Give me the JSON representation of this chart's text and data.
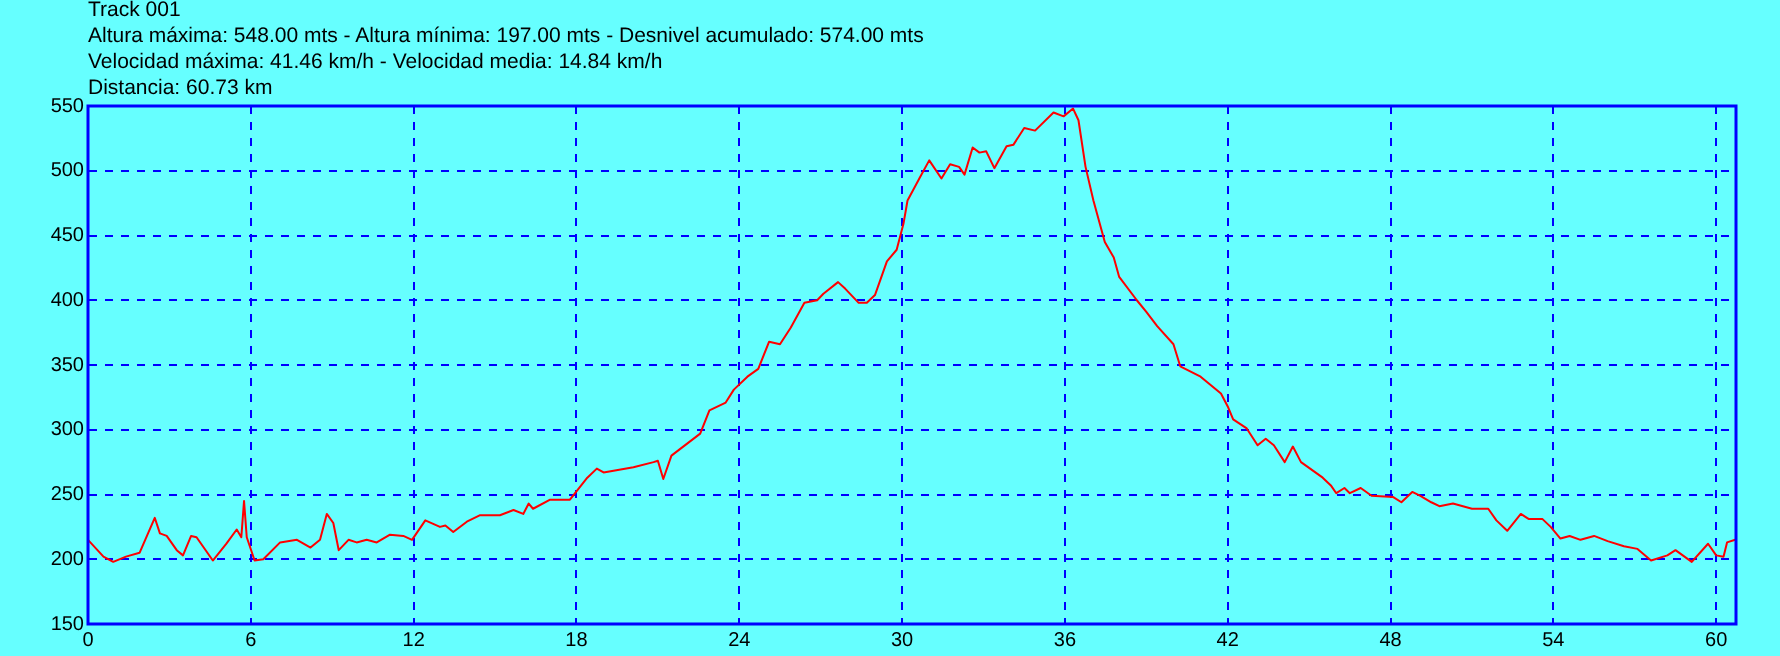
{
  "chart_data": {
    "type": "line",
    "title": "Track 001",
    "subtitle": "Altura máxima: 548.00 mts - Altura mínima: 197.00 mts - Desnivel acumulado: 574.00 mts",
    "annotations": [
      "Velocidad máxima: 41.46 km/h - Velocidad media: 14.84 km/h",
      "Distancia: 60.73 km"
    ],
    "series": [
      {
        "color": "#ff0000",
        "x": [
          0,
          0.57,
          0.93,
          1.4,
          1.9,
          2.46,
          2.65,
          2.9,
          3.27,
          3.5,
          3.8,
          4.0,
          4.6,
          5.1,
          5.48,
          5.65,
          5.75,
          5.85,
          6.14,
          6.46,
          7.08,
          7.7,
          8.2,
          8.55,
          8.8,
          9.04,
          9.24,
          9.6,
          9.9,
          10.27,
          10.64,
          11.13,
          11.62,
          11.94,
          12.43,
          12.97,
          13.17,
          13.46,
          13.96,
          14.45,
          15.18,
          15.68,
          16.04,
          16.24,
          16.4,
          17.03,
          17.76,
          18.4,
          18.75,
          19.0,
          20.1,
          20.84,
          21.0,
          21.2,
          21.5,
          22.56,
          22.9,
          23.5,
          23.8,
          24.3,
          24.7,
          25.1,
          25.5,
          25.9,
          26.4,
          26.87,
          27.1,
          27.64,
          27.9,
          28.4,
          28.7,
          29.0,
          29.44,
          29.8,
          30.05,
          30.2,
          30.66,
          31.0,
          31.45,
          31.77,
          32.1,
          32.3,
          32.6,
          32.85,
          33.1,
          33.4,
          33.85,
          34.1,
          34.5,
          34.9,
          35.58,
          35.95,
          36.3,
          36.5,
          36.76,
          37.05,
          37.47,
          37.8,
          38.0,
          38.65,
          39.0,
          39.4,
          40.0,
          40.25,
          41.0,
          41.75,
          42.0,
          42.2,
          42.7,
          43.1,
          43.4,
          43.7,
          44.1,
          44.4,
          44.7,
          45.5,
          45.8,
          46.0,
          46.3,
          46.5,
          46.9,
          47.3,
          48.1,
          48.4,
          48.8,
          49.1,
          49.5,
          49.8,
          50.3,
          51.0,
          51.6,
          51.9,
          52.3,
          52.8,
          53.1,
          53.6,
          53.9,
          54.26,
          54.6,
          55.0,
          55.5,
          56.0,
          56.6,
          57.1,
          57.6,
          58.2,
          58.5,
          59.1,
          59.7,
          60.0,
          60.27,
          60.4,
          60.7
        ],
        "values": [
          215,
          202,
          198,
          202,
          205,
          232,
          220,
          218,
          207,
          203,
          218,
          217,
          199,
          212,
          223,
          217,
          245,
          217,
          199,
          200,
          213,
          215,
          209,
          215,
          235,
          228,
          207,
          215,
          213,
          215,
          213,
          219,
          218,
          215,
          230,
          225,
          226,
          221,
          229,
          234,
          234,
          238,
          235,
          243,
          239,
          246,
          246,
          263,
          270,
          267,
          271,
          275,
          276,
          262,
          280,
          297,
          315,
          321,
          331,
          341,
          347,
          368,
          366,
          379,
          398,
          400,
          405,
          414,
          409,
          398,
          398,
          404,
          430,
          439,
          459,
          477,
          495,
          508,
          494,
          505,
          503,
          497,
          518,
          514,
          515,
          502,
          519,
          520,
          533,
          531,
          545,
          542,
          548,
          539,
          503,
          477,
          445,
          433,
          418,
          400,
          391,
          380,
          366,
          349,
          341,
          328,
          318,
          308,
          301,
          288,
          293,
          288,
          275,
          287,
          275,
          263,
          257,
          251,
          255,
          251,
          255,
          249,
          248,
          244,
          252,
          249,
          244,
          241,
          243,
          239,
          239,
          230,
          222,
          235,
          231,
          231,
          225,
          216,
          218,
          215,
          218,
          214,
          210,
          208,
          199,
          203,
          207,
          198,
          212,
          203,
          202,
          213,
          215
        ]
      }
    ],
    "xlim": [
      0,
      60.73
    ],
    "xticks": [
      0,
      6,
      12,
      18,
      24,
      30,
      36,
      42,
      48,
      54,
      60
    ],
    "ylim": [
      150,
      550
    ],
    "yticks": [
      150,
      200,
      250,
      300,
      350,
      400,
      450,
      500,
      550
    ],
    "grid": true,
    "legend": false,
    "marker": "none",
    "line_style": "solid"
  }
}
